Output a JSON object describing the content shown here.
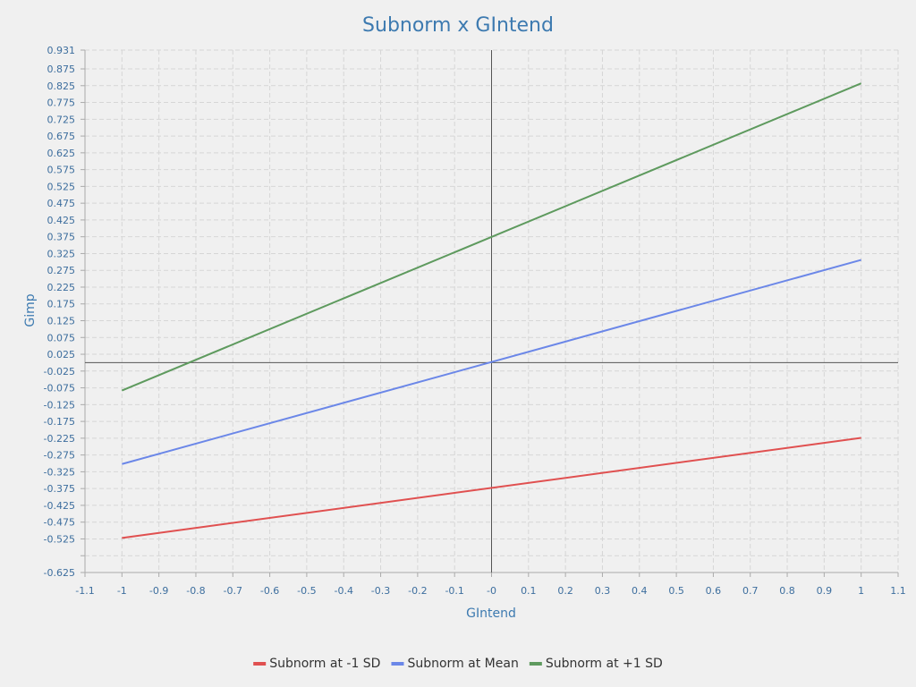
{
  "chart_data": {
    "type": "line",
    "title": "Subnorm x GIntend",
    "xlabel": "GIntend",
    "ylabel": "Gimp",
    "xlim": [
      -1.1,
      1.1
    ],
    "ylim": [
      -0.625,
      0.931
    ],
    "x_ticks": [
      "-1.1",
      "-1",
      "-0.9",
      "-0.8",
      "-0.7",
      "-0.6",
      "-0.5",
      "-0.4",
      "-0.3",
      "-0.2",
      "-0.1",
      "-0",
      "0.1",
      "0.2",
      "0.3",
      "0.4",
      "0.5",
      "0.6",
      "0.7",
      "0.8",
      "0.9",
      "1",
      "1.1"
    ],
    "y_ticks": [
      "0.931",
      "0.875",
      "0.825",
      "0.775",
      "0.725",
      "0.675",
      "0.625",
      "0.575",
      "0.525",
      "0.475",
      "0.425",
      "0.375",
      "0.325",
      "0.275",
      "0.225",
      "0.175",
      "0.125",
      "0.075",
      "0.025",
      "-0.025",
      "-0.075",
      "-0.125",
      "-0.175",
      "-0.225",
      "-0.275",
      "-0.325",
      "-0.375",
      "-0.425",
      "-0.475",
      "-0.525",
      "-0.625"
    ],
    "grid": true,
    "legend_position": "bottom",
    "series": [
      {
        "name": "Subnorm at -1 SD",
        "color": "#e05050",
        "x": [
          -1,
          1
        ],
        "y": [
          -0.522,
          -0.224
        ]
      },
      {
        "name": "Subnorm at Mean",
        "color": "#6b87e8",
        "x": [
          -1,
          1
        ],
        "y": [
          -0.302,
          0.306
        ]
      },
      {
        "name": "Subnorm at +1 SD",
        "color": "#5e9a5e",
        "x": [
          -1,
          1
        ],
        "y": [
          -0.083,
          0.832
        ]
      }
    ]
  }
}
